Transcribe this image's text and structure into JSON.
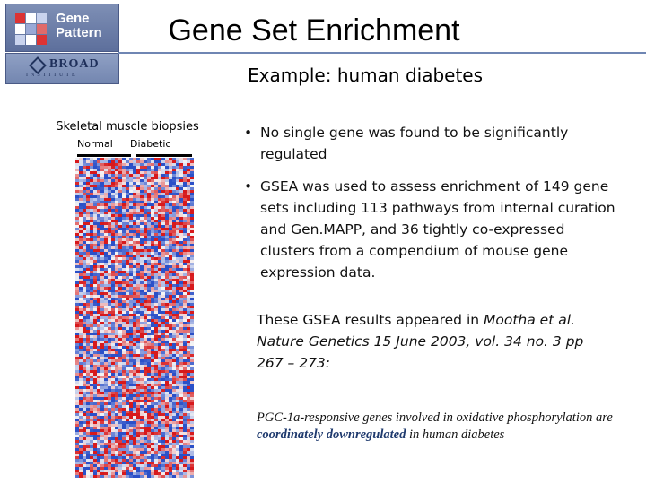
{
  "logos": {
    "genepattern": {
      "line1": "Gene",
      "line2": "Pattern"
    },
    "broad": {
      "name": "BROAD",
      "sub": "INSTITUTE"
    }
  },
  "slide": {
    "title": "Gene Set Enrichment",
    "subtitle": "Example: human diabetes"
  },
  "heatmap": {
    "label": "Skeletal muscle biopsies",
    "group_normal": "Normal",
    "group_diabetic": "Diabetic",
    "colors": {
      "high": "#d7191c",
      "mid": "#f5f5f5",
      "low": "#2b50c8"
    }
  },
  "bullets": [
    "No single gene was found to be significantly regulated",
    "GSEA was used to assess enrichment of 149 gene sets including 113 pathways from internal curation and Gen.MAPP, and 36 tightly co-expressed clusters from a compendium of mouse gene expression data."
  ],
  "citation": {
    "prefix": "These GSEA results appeared in ",
    "italic": "Mootha et al. Nature Genetics 15 June 2003, vol. 34 no. 3 pp 267 – 273:"
  },
  "finding": {
    "before": "PGC-1a-responsive genes involved in oxidative phosphorylation are ",
    "emphasis": "coordinately downregulated",
    "after": " in human diabetes"
  }
}
